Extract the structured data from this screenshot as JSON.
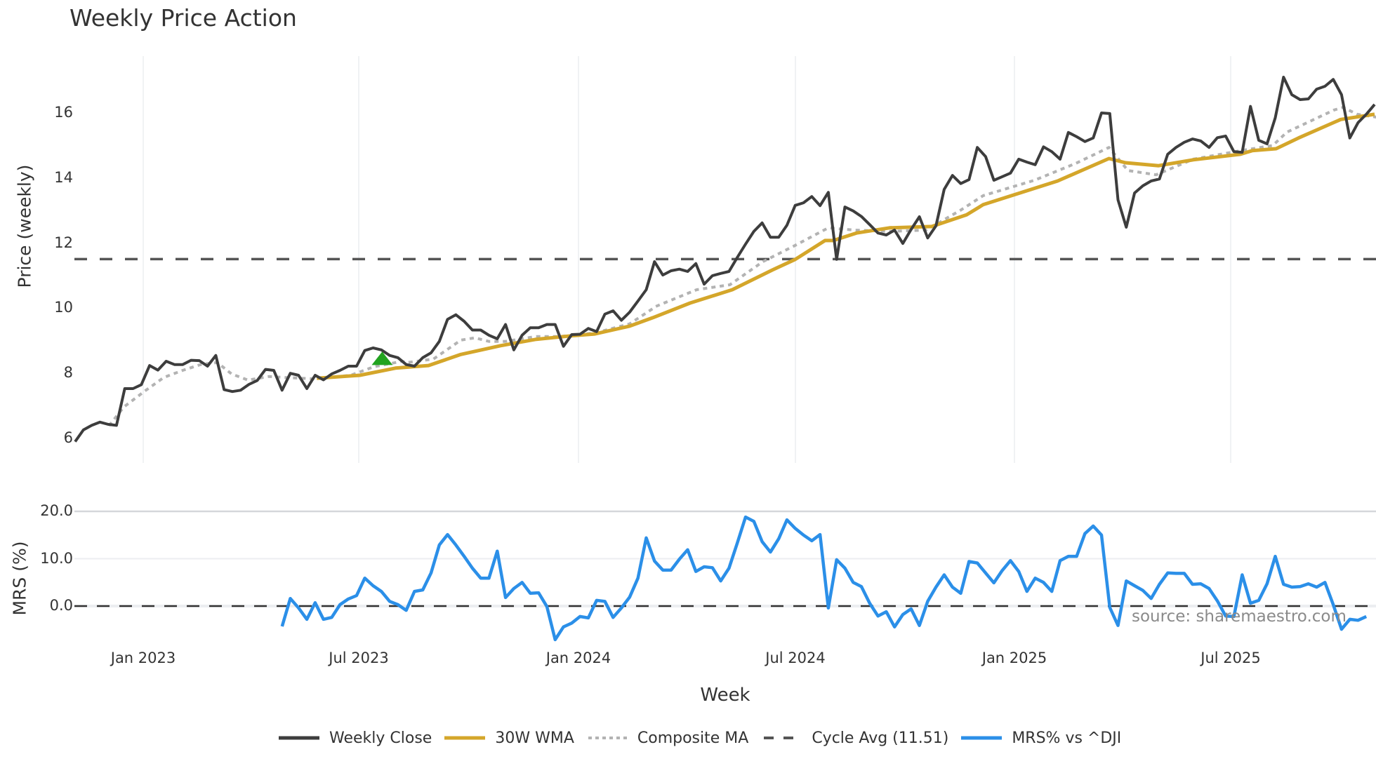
{
  "title": "Weekly Price Action",
  "source_note": "source: sharemaestro.com",
  "colors": {
    "weekly_close": "#3d3d3d",
    "wma": "#D4A62A",
    "composite": "#b3b3b3",
    "cycle_avg": "#555555",
    "mrs": "#2B8FE8",
    "signal": "#22A31F",
    "grid": "#eceef1"
  },
  "legend": [
    {
      "key": "weekly_close",
      "label": "Weekly Close",
      "style": "solid"
    },
    {
      "key": "wma",
      "label": "30W WMA",
      "style": "solid"
    },
    {
      "key": "composite",
      "label": "Composite MA",
      "style": "dotted"
    },
    {
      "key": "cycle_avg",
      "label": "Cycle Avg (11.51)",
      "style": "dashed"
    },
    {
      "key": "mrs",
      "label": "MRS% vs ^DJI",
      "style": "solid"
    }
  ],
  "chart_data": [
    {
      "type": "line",
      "title": "Weekly Price Action",
      "xlabel": "Week",
      "ylabel": "Price (weekly)",
      "x_tick_labels": [
        "Jan 2023",
        "Jul 2023",
        "Jan 2024",
        "Jul 2024",
        "Jan 2025",
        "Jul 2025"
      ],
      "y_ticks": [
        6,
        8,
        10,
        12,
        14,
        16
      ],
      "ylim": [
        5.6,
        17.6
      ],
      "grid": "vertical",
      "legend_position": "bottom",
      "x_start_approx": "Oct 2022",
      "weekly_points": 158,
      "series": [
        {
          "name": "Weekly Close",
          "key": "weekly_close",
          "start_index": 0,
          "values": [
            5.9,
            6.26,
            6.4,
            6.5,
            6.43,
            6.4,
            7.53,
            7.53,
            7.65,
            8.24,
            8.1,
            8.37,
            8.27,
            8.27,
            8.4,
            8.39,
            8.22,
            8.55,
            7.5,
            7.44,
            7.48,
            7.66,
            7.78,
            8.12,
            8.09,
            7.48,
            8.0,
            7.94,
            7.53,
            7.94,
            7.8,
            7.98,
            8.09,
            8.22,
            8.22,
            8.7,
            8.78,
            8.72,
            8.55,
            8.48,
            8.27,
            8.22,
            8.48,
            8.63,
            8.98,
            9.66,
            9.8,
            9.6,
            9.33,
            9.33,
            9.17,
            9.06,
            9.5,
            8.72,
            9.17,
            9.4,
            9.4,
            9.5,
            9.5,
            8.83,
            9.19,
            9.2,
            9.38,
            9.28,
            9.82,
            9.92,
            9.63,
            9.88,
            10.22,
            10.57,
            11.43,
            11.02,
            11.15,
            11.2,
            11.13,
            11.37,
            10.74,
            11.0,
            11.07,
            11.13,
            11.56,
            11.97,
            12.36,
            12.62,
            12.18,
            12.18,
            12.55,
            13.16,
            13.24,
            13.43,
            13.15,
            13.56,
            11.5,
            13.11,
            12.99,
            12.82,
            12.57,
            12.31,
            12.25,
            12.4,
            11.99,
            12.42,
            12.81,
            12.16,
            12.53,
            13.65,
            14.08,
            13.83,
            13.95,
            14.94,
            14.66,
            13.93,
            14.04,
            14.15,
            14.58,
            14.49,
            14.41,
            14.96,
            14.81,
            14.58,
            15.4,
            15.27,
            15.12,
            15.23,
            16.0,
            15.98,
            13.33,
            12.49,
            13.54,
            13.76,
            13.91,
            13.97,
            14.73,
            14.94,
            15.1,
            15.2,
            15.14,
            14.94,
            15.24,
            15.29,
            14.81,
            14.79,
            16.2,
            15.16,
            15.05,
            15.85,
            17.1,
            16.56,
            16.41,
            16.43,
            16.73,
            16.82,
            17.03,
            16.56,
            15.23,
            15.7,
            15.96,
            16.26
          ]
        },
        {
          "name": "30W WMA",
          "key": "wma",
          "points": [
            [
              29.2,
              7.85
            ],
            [
              34.4,
              7.94
            ],
            [
              38.7,
              8.16
            ],
            [
              42.7,
              8.24
            ],
            [
              46.6,
              8.58
            ],
            [
              51.4,
              8.85
            ],
            [
              55.6,
              9.04
            ],
            [
              59.9,
              9.15
            ],
            [
              62.8,
              9.21
            ],
            [
              67.0,
              9.45
            ],
            [
              69.8,
              9.71
            ],
            [
              74.3,
              10.16
            ],
            [
              79.4,
              10.57
            ],
            [
              84.2,
              11.17
            ],
            [
              87.0,
              11.5
            ],
            [
              90.6,
              12.08
            ],
            [
              91.6,
              12.08
            ],
            [
              94.4,
              12.31
            ],
            [
              98.4,
              12.47
            ],
            [
              103.5,
              12.51
            ],
            [
              107.7,
              12.87
            ],
            [
              109.7,
              13.18
            ],
            [
              118.7,
              13.91
            ],
            [
              124.9,
              14.6
            ],
            [
              126.9,
              14.47
            ],
            [
              130.9,
              14.38
            ],
            [
              135.1,
              14.56
            ],
            [
              140.8,
              14.73
            ],
            [
              142.2,
              14.84
            ],
            [
              145.1,
              14.9
            ],
            [
              147.8,
              15.23
            ],
            [
              152.9,
              15.8
            ],
            [
              157,
              15.96
            ]
          ]
        },
        {
          "name": "Composite MA",
          "key": "composite",
          "points": [
            [
              4.1,
              6.39
            ],
            [
              5.9,
              6.97
            ],
            [
              8.5,
              7.47
            ],
            [
              10.7,
              7.87
            ],
            [
              13.0,
              8.09
            ],
            [
              15.3,
              8.28
            ],
            [
              17.2,
              8.33
            ],
            [
              18.9,
              7.98
            ],
            [
              20.9,
              7.79
            ],
            [
              23.4,
              7.9
            ],
            [
              25.5,
              7.87
            ],
            [
              28.8,
              7.83
            ],
            [
              33.3,
              7.94
            ],
            [
              36.1,
              8.2
            ],
            [
              39.5,
              8.37
            ],
            [
              40.1,
              8.33
            ],
            [
              43.3,
              8.44
            ],
            [
              46.6,
              9.02
            ],
            [
              48.3,
              9.09
            ],
            [
              50.0,
              8.98
            ],
            [
              52.0,
              8.98
            ],
            [
              55.6,
              9.13
            ],
            [
              58.5,
              9.13
            ],
            [
              62.8,
              9.24
            ],
            [
              67.0,
              9.52
            ],
            [
              69.8,
              9.99
            ],
            [
              70.1,
              10.05
            ],
            [
              75.1,
              10.57
            ],
            [
              79.1,
              10.72
            ],
            [
              83.1,
              11.43
            ],
            [
              87.0,
              11.93
            ],
            [
              91.0,
              12.47
            ],
            [
              94.1,
              12.4
            ],
            [
              98.4,
              12.36
            ],
            [
              102.8,
              12.4
            ],
            [
              106.9,
              13.0
            ],
            [
              109.7,
              13.46
            ],
            [
              115.9,
              13.93
            ],
            [
              120.9,
              14.45
            ],
            [
              124.9,
              14.94
            ],
            [
              127.2,
              14.23
            ],
            [
              130.6,
              14.1
            ],
            [
              135.1,
              14.58
            ],
            [
              140.8,
              14.84
            ],
            [
              144.7,
              15.0
            ],
            [
              146.4,
              15.41
            ],
            [
              152.1,
              16.09
            ],
            [
              153.2,
              16.17
            ],
            [
              154.9,
              15.96
            ],
            [
              157.2,
              15.87
            ]
          ]
        },
        {
          "name": "Cycle Avg (11.51)",
          "key": "cycle_avg",
          "constant": 11.51
        }
      ],
      "annotations": [
        {
          "type": "buy-signal-triangle",
          "index": 37.1,
          "value": 8.45
        }
      ]
    },
    {
      "type": "line",
      "ylabel": "MRS (%)",
      "y_ticks": [
        0.0,
        10.0,
        20.0
      ],
      "y_tick_labels": [
        "0.0",
        "10.0",
        "20.0"
      ],
      "ylim": [
        -8,
        21
      ],
      "zero_line": "dashed",
      "series": [
        {
          "name": "MRS% vs ^DJI",
          "key": "mrs",
          "start_index": 25,
          "values": [
            -4.3,
            1.6,
            -0.4,
            -2.8,
            0.7,
            -2.8,
            -2.4,
            0.3,
            1.5,
            2.2,
            5.9,
            4.3,
            3.1,
            1.0,
            0.3,
            -0.9,
            3.1,
            3.4,
            7.0,
            12.9,
            15.1,
            12.9,
            10.5,
            8.0,
            5.9,
            5.9,
            11.6,
            1.8,
            3.7,
            5.0,
            2.7,
            2.8,
            -0.1,
            -7.1,
            -4.4,
            -3.6,
            -2.2,
            -2.5,
            1.2,
            1.0,
            -2.4,
            -0.4,
            1.9,
            5.9,
            14.4,
            9.5,
            7.6,
            7.6,
            9.9,
            11.9,
            7.3,
            8.3,
            8.1,
            5.3,
            8.0,
            13.3,
            18.8,
            17.9,
            13.6,
            11.4,
            14.2,
            18.2,
            16.4,
            15.0,
            13.8,
            15.1,
            -0.4,
            9.8,
            8.0,
            5.0,
            4.1,
            0.6,
            -2.1,
            -1.2,
            -4.4,
            -1.8,
            -0.6,
            -4.1,
            1.0,
            4.0,
            6.6,
            4.0,
            2.7,
            9.4,
            9.1,
            7.0,
            4.9,
            7.5,
            9.6,
            7.3,
            3.1,
            5.9,
            5.0,
            3.1,
            9.6,
            10.5,
            10.5,
            15.3,
            16.9,
            15.0,
            -0.3,
            -4.1,
            5.3,
            4.3,
            3.3,
            1.6,
            4.6,
            7.0,
            6.9,
            6.9,
            4.6,
            4.7,
            3.7,
            1.1,
            -2.1,
            -2.2,
            6.6,
            0.6,
            1.2,
            4.7,
            10.5,
            4.6,
            4.0,
            4.1,
            4.7,
            4.0,
            5.0,
            0.3,
            -4.9,
            -2.8,
            -3.0,
            -2.2
          ]
        }
      ]
    }
  ],
  "axes": {
    "price_ticks": [
      "16",
      "14",
      "12",
      "10",
      "8",
      "6"
    ],
    "mrs_ticks": [
      "20.0",
      "10.0",
      "0.0"
    ],
    "x_ticks": [
      "Jan 2023",
      "Jul 2023",
      "Jan 2024",
      "Jul 2024",
      "Jan 2025",
      "Jul 2025"
    ],
    "price_label": "Price (weekly)",
    "mrs_label": "MRS (%)",
    "x_label": "Week"
  }
}
